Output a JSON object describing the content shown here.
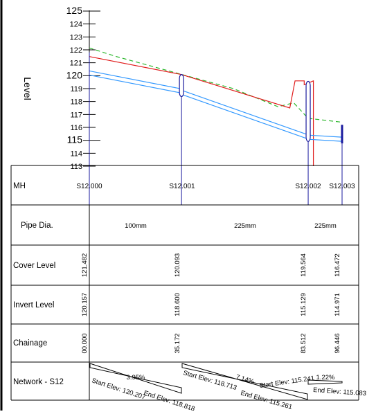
{
  "profile": {
    "axis_title": "Level",
    "y_ticks": [
      "125",
      "124",
      "123",
      "122",
      "121",
      "120",
      "119",
      "118",
      "117",
      "116",
      "115",
      "114",
      "113"
    ],
    "ylim": [
      113,
      125
    ],
    "colors": {
      "ground": "#2db82d",
      "cover": "#e01b1b",
      "pipe": "#3399ff",
      "manhole": "#1a1a9e",
      "grid": "#000000"
    },
    "manholes": [
      {
        "name": "S12.000",
        "chainage": 0.0,
        "cover": 121.482,
        "invert": 120.157
      },
      {
        "name": "S12.001",
        "chainage": 35.172,
        "cover": 120.093,
        "invert": 118.6
      },
      {
        "name": "S12.002",
        "chainage": 83.512,
        "cover": 119.564,
        "invert": 115.129
      },
      {
        "name": "S12.003",
        "chainage": 96.446,
        "cover": 116.472,
        "invert": 114.971
      }
    ],
    "ground_profile": [
      {
        "ch": 0.0,
        "level": 122.15
      },
      {
        "ch": 10.0,
        "level": 121.5
      },
      {
        "ch": 35.172,
        "level": 120.1
      },
      {
        "ch": 55.0,
        "level": 119.0
      },
      {
        "ch": 72.0,
        "level": 117.6
      },
      {
        "ch": 78.0,
        "level": 117.9
      },
      {
        "ch": 83.512,
        "level": 116.7
      },
      {
        "ch": 96.446,
        "level": 116.4
      }
    ],
    "cover_profile": [
      {
        "ch": 0.0,
        "level": 121.48
      },
      {
        "ch": 35.172,
        "level": 120.09
      },
      {
        "ch": 35.172,
        "level": 120.09
      },
      {
        "ch": 76.5,
        "level": 117.5
      },
      {
        "ch": 78.5,
        "level": 119.6
      },
      {
        "ch": 82.0,
        "level": 119.6
      },
      {
        "ch": 82.0,
        "level": 119.3
      },
      {
        "ch": 85.5,
        "level": 119.6
      },
      {
        "ch": 85.5,
        "level": 113.0
      }
    ],
    "pipes": [
      {
        "from": 0,
        "to": 1,
        "start_elev": 120.207,
        "end_elev": 118.818
      },
      {
        "from": 1,
        "to": 2,
        "start_elev": 118.713,
        "end_elev": 115.261
      },
      {
        "from": 2,
        "to": 3,
        "start_elev": 115.241,
        "end_elev": 115.083
      }
    ]
  },
  "table": {
    "rows": {
      "mh": "MH",
      "pipe_dia": "Pipe Dia.",
      "cover": "Cover Level",
      "invert": "Invert Level",
      "chainage": "Chainage",
      "network": "Network - S12"
    },
    "mh_names": [
      "S12.000",
      "S12.001",
      "S12.002",
      "S12.003"
    ],
    "pipe_dias": [
      "100mm",
      "225mm",
      "225mm"
    ],
    "cover_levels": [
      "121.482",
      "120.093",
      "119.564",
      "116.472"
    ],
    "invert_levels": [
      "120.157",
      "118.600",
      "115.129",
      "114.971"
    ],
    "chainages": [
      "00.000",
      "35.172",
      "83.512",
      "96.446"
    ],
    "network": [
      {
        "slope": "3.95%",
        "start": "Start Elev: 120.207",
        "end": "End Elev: 118.818"
      },
      {
        "slope": "7.14%",
        "start": "Start Elev: 118.713",
        "end": "End Elev: 115.261"
      },
      {
        "slope": "1.22%",
        "start": "Start Elev: 115.241",
        "end": "End Elev: 115.083"
      }
    ]
  }
}
